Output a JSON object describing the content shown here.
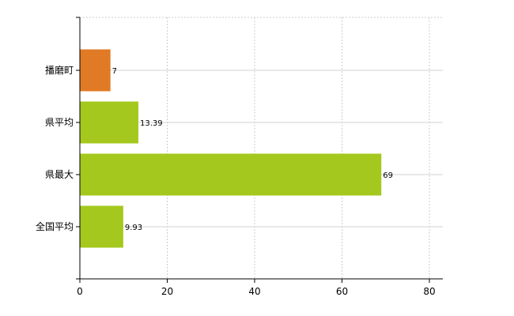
{
  "chart_data": {
    "type": "bar",
    "orientation": "horizontal",
    "categories": [
      "播磨町",
      "県平均",
      "県最大",
      "全国平均"
    ],
    "values": [
      7,
      13.39,
      69,
      9.93
    ],
    "data_labels": [
      "7",
      "13.39",
      "69",
      "9.93"
    ],
    "colors": [
      "#e07a24",
      "#a4c81e",
      "#a4c81e",
      "#a4c81e"
    ],
    "xlim": [
      0,
      80
    ],
    "x_ticks": [
      0,
      20,
      40,
      60,
      80
    ],
    "x_tick_labels": [
      "0",
      "20",
      "40",
      "60",
      "80"
    ],
    "title": "",
    "xlabel": "",
    "ylabel": "",
    "grid": true,
    "legend": "none"
  }
}
